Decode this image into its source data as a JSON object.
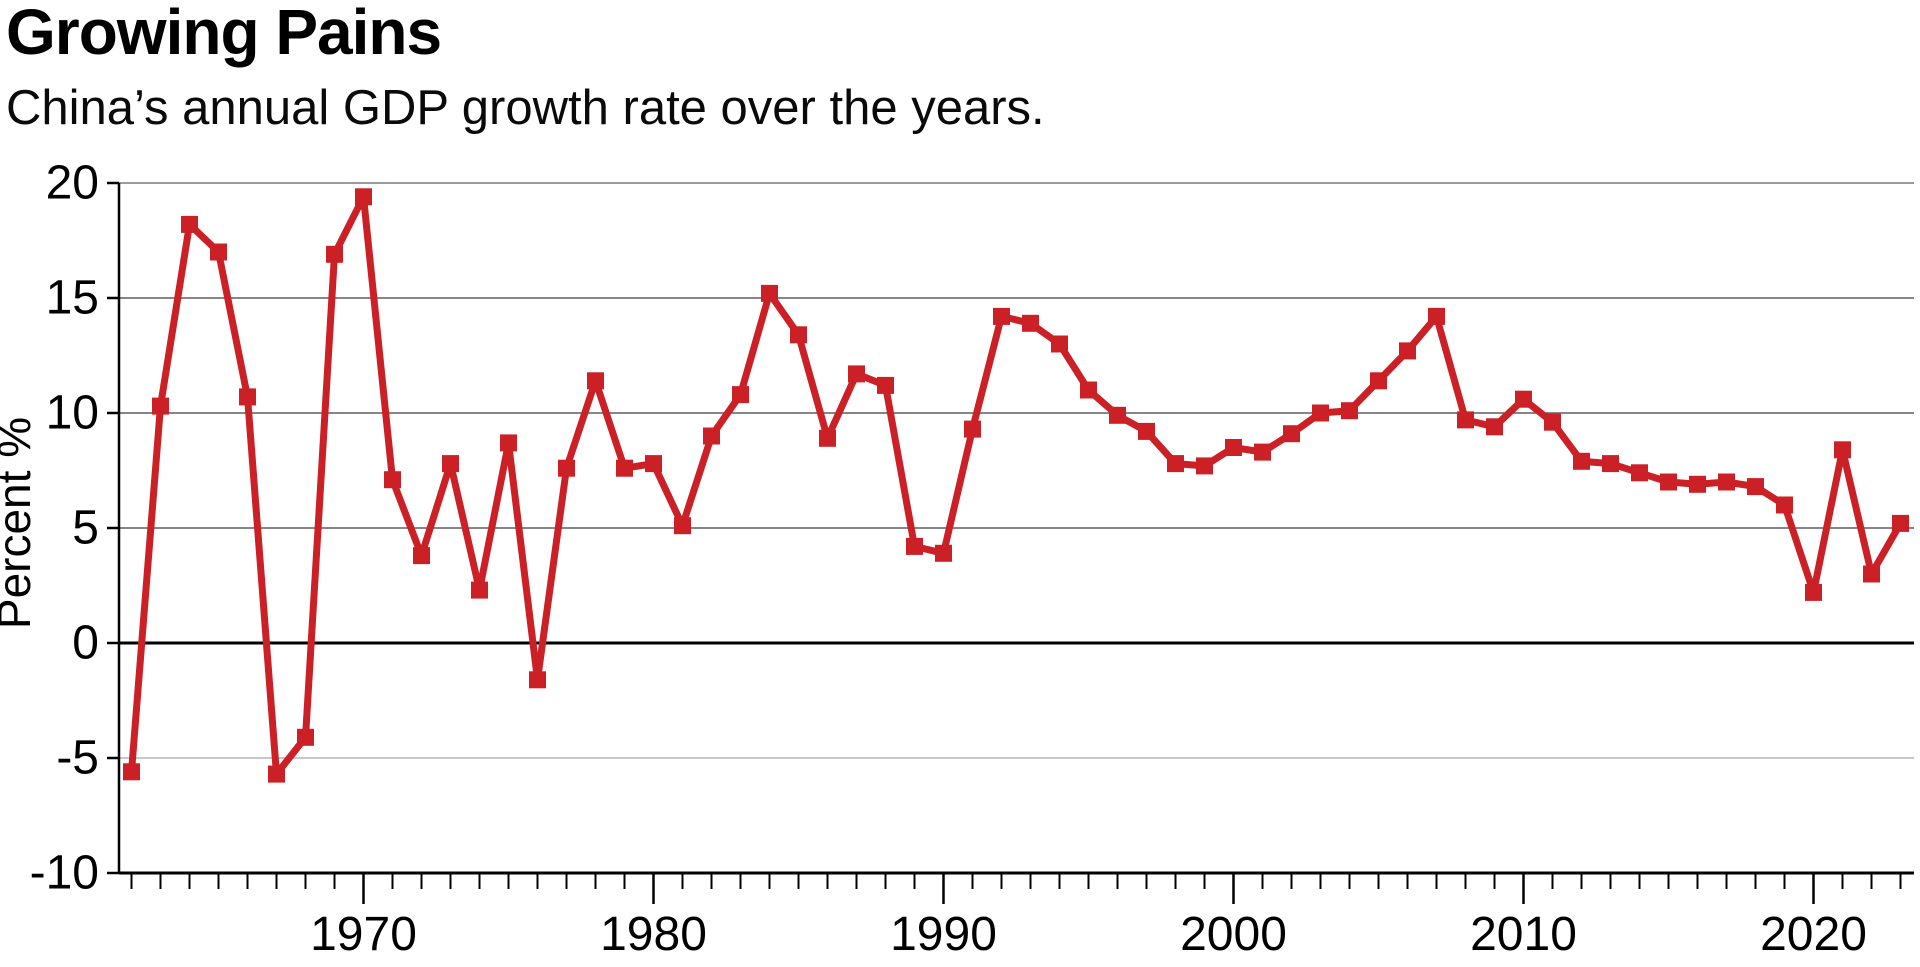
{
  "chart_data": {
    "type": "line",
    "title": "Growing Pains",
    "subtitle": "China’s annual GDP growth rate over the years.",
    "ylabel": "Percent %",
    "xlabel": "",
    "x": [
      1962,
      1963,
      1964,
      1965,
      1966,
      1967,
      1968,
      1969,
      1970,
      1971,
      1972,
      1973,
      1974,
      1975,
      1976,
      1977,
      1978,
      1979,
      1980,
      1981,
      1982,
      1983,
      1984,
      1985,
      1986,
      1987,
      1988,
      1989,
      1990,
      1991,
      1992,
      1993,
      1994,
      1995,
      1996,
      1997,
      1998,
      1999,
      2000,
      2001,
      2002,
      2003,
      2004,
      2005,
      2006,
      2007,
      2008,
      2009,
      2010,
      2011,
      2012,
      2013,
      2014,
      2015,
      2016,
      2017,
      2018,
      2019,
      2020,
      2021,
      2022,
      2023
    ],
    "series": [
      {
        "name": "China annual GDP growth rate",
        "values": [
          -5.6,
          10.3,
          18.2,
          17.0,
          10.7,
          -5.7,
          -4.1,
          16.9,
          19.4,
          7.1,
          3.8,
          7.8,
          2.3,
          8.7,
          -1.6,
          7.6,
          11.4,
          7.6,
          7.8,
          5.1,
          9.0,
          10.8,
          15.2,
          13.4,
          8.9,
          11.7,
          11.2,
          4.2,
          3.9,
          9.3,
          14.2,
          13.9,
          13.0,
          11.0,
          9.9,
          9.2,
          7.8,
          7.7,
          8.5,
          8.3,
          9.1,
          10.0,
          10.1,
          11.4,
          12.7,
          14.2,
          9.7,
          9.4,
          10.6,
          9.6,
          7.9,
          7.8,
          7.4,
          7.0,
          6.9,
          7.0,
          6.8,
          6.0,
          2.2,
          8.4,
          3.0,
          5.2
        ]
      }
    ],
    "xlim": [
      1961.6,
      2023.6
    ],
    "ylim": [
      -10,
      20
    ],
    "y_ticks": [
      20,
      15,
      10,
      5,
      0,
      -5,
      -10
    ],
    "y_tick_labels": [
      "20",
      "15",
      "10",
      "5",
      "0",
      "-5",
      "-10"
    ],
    "x_major_ticks": [
      1970,
      1980,
      1990,
      2000,
      2010,
      2020
    ],
    "x_major_tick_labels": [
      "1970",
      "1980",
      "1990",
      "2000",
      "2010",
      "2020"
    ],
    "x_minor_tick_every_year": true,
    "grid": "horizontal",
    "legend": "none",
    "marker": "square",
    "line_color": "#cb2026",
    "zero_line_color": "#000000",
    "top_grid_color": "#9b9b9b",
    "mid_grid_color": "#3d3d3d",
    "neg5_grid_color": "#b5b5b5",
    "axis_color": "#000000"
  }
}
